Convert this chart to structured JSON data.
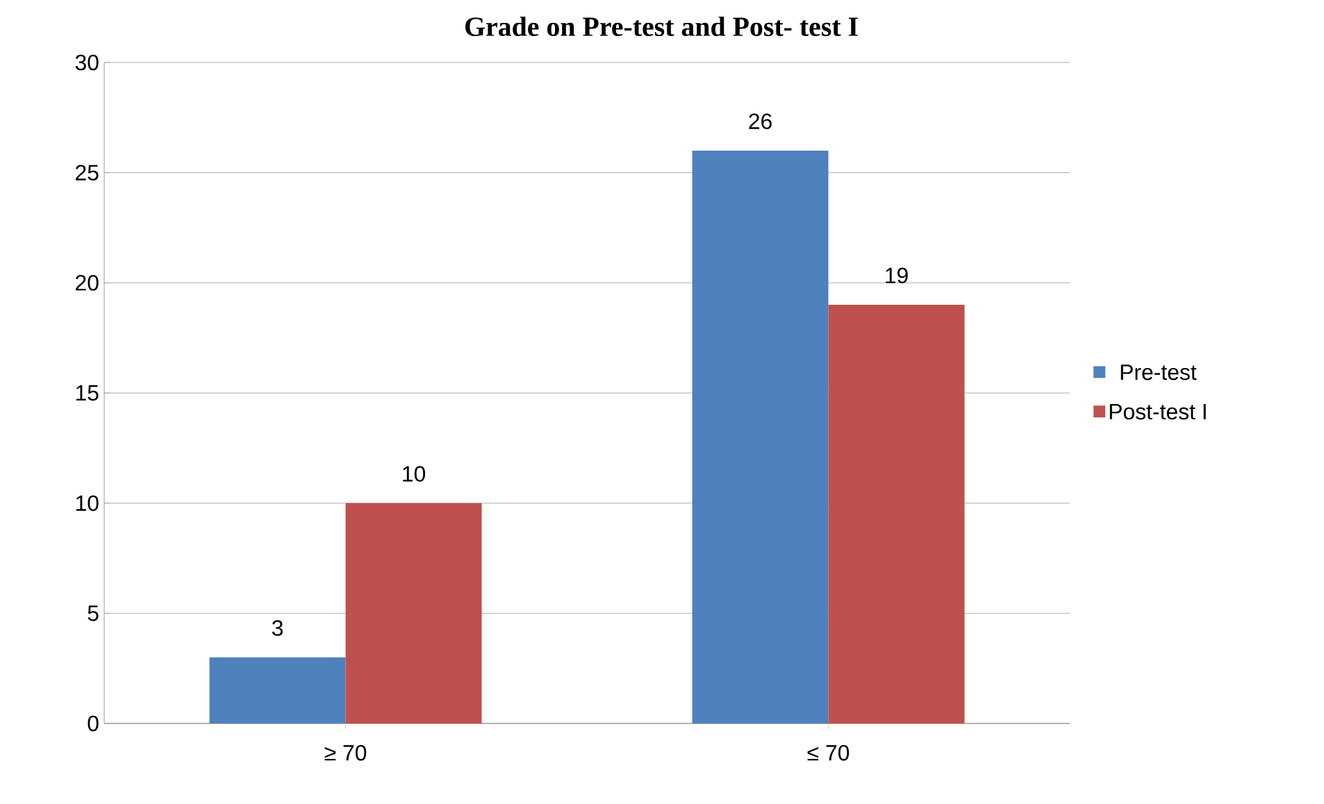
{
  "chart_data": {
    "type": "bar",
    "title": "Grade on Pre-test and Post- test I",
    "categories": [
      "≥ 70",
      "≤ 70"
    ],
    "series": [
      {
        "name": "Pre-test",
        "color": "#4f81bd",
        "values": [
          3,
          26
        ]
      },
      {
        "name": "Post-test I",
        "color": "#c0504d",
        "values": [
          10,
          19
        ]
      }
    ],
    "ylim": [
      0,
      30
    ],
    "yticks": [
      0,
      5,
      10,
      15,
      20,
      25,
      30
    ],
    "grid": "y",
    "legend": "right",
    "data_labels": true
  }
}
